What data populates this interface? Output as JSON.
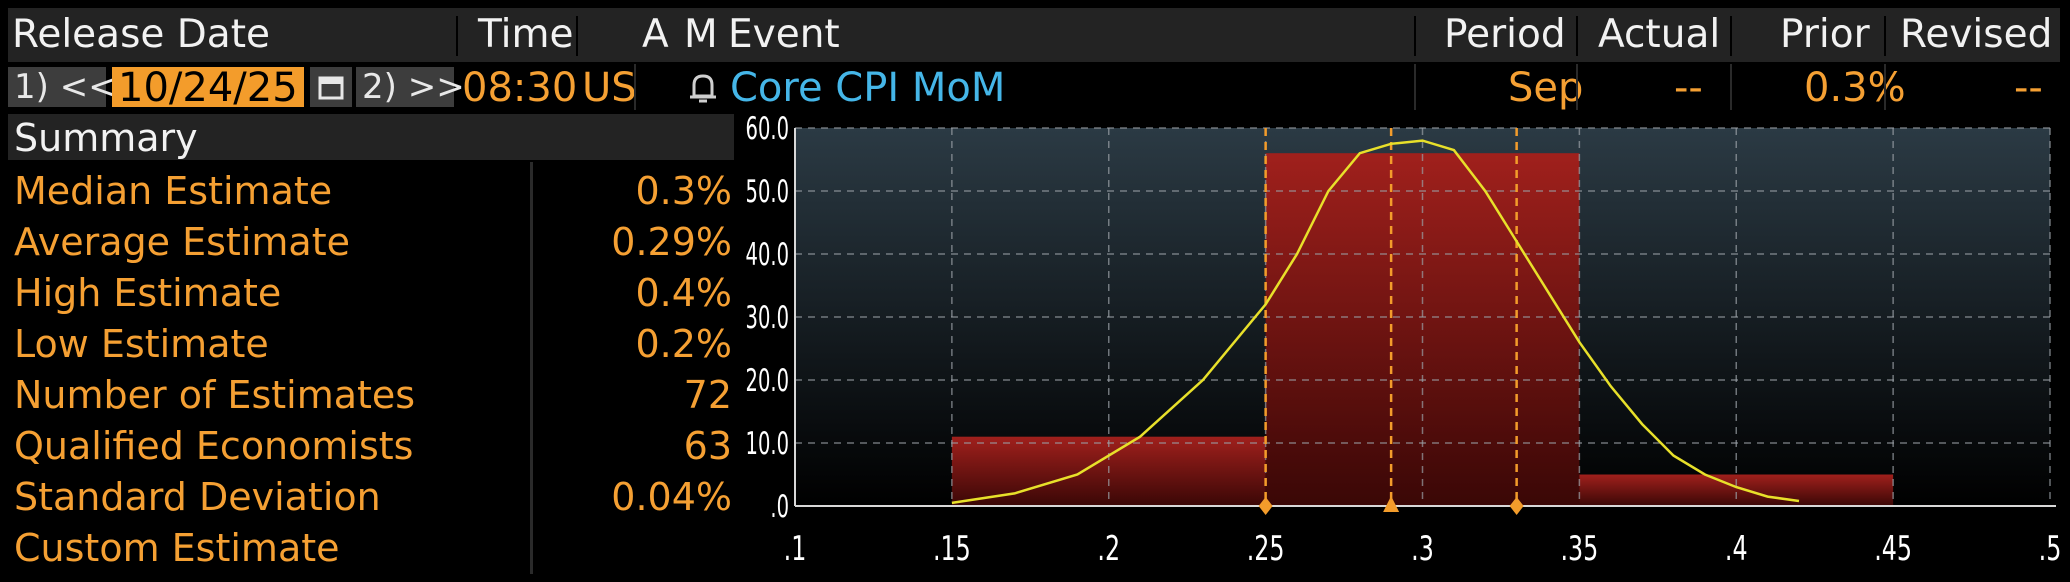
{
  "header": {
    "release_date": "Release Date",
    "time": "Time",
    "a": "A",
    "m": "M",
    "event": "Event",
    "period": "Period",
    "actual": "Actual",
    "prior": "Prior",
    "revised": "Revised"
  },
  "row": {
    "prev_btn": "1) <<",
    "date": "10/24/25",
    "calendar_icon": "calendar-icon",
    "next_btn": "2) >>",
    "time": "08:30",
    "region": "US",
    "alert_icon": "bell-icon",
    "event": "Core CPI MoM",
    "period": "Sep",
    "actual": "--",
    "prior": "0.3%",
    "revised": "--"
  },
  "summary": {
    "title": "Summary",
    "items": [
      {
        "label": "Median Estimate",
        "value": "0.3%"
      },
      {
        "label": "Average Estimate",
        "value": "0.29%"
      },
      {
        "label": "High Estimate",
        "value": "0.4%"
      },
      {
        "label": "Low Estimate",
        "value": "0.2%"
      },
      {
        "label": "Number of Estimates",
        "value": "72"
      },
      {
        "label": "Qualified Economists",
        "value": "63"
      },
      {
        "label": "Standard Deviation",
        "value": "0.04%"
      },
      {
        "label": "Custom Estimate",
        "value": ""
      }
    ]
  },
  "chart_data": {
    "type": "bar",
    "title": "",
    "xlabel": "",
    "ylabel": "",
    "xlim": [
      0.1,
      0.5
    ],
    "ylim": [
      0,
      60
    ],
    "x_ticks": [
      ".1",
      ".15",
      ".2",
      ".25",
      ".3",
      ".35",
      ".4",
      ".45",
      ".5"
    ],
    "x_tick_values": [
      0.1,
      0.15,
      0.2,
      0.25,
      0.3,
      0.35,
      0.4,
      0.45,
      0.5
    ],
    "y_ticks": [
      ".0",
      "10.0",
      "20.0",
      "30.0",
      "40.0",
      "50.0",
      "60.0"
    ],
    "y_tick_values": [
      0,
      10,
      20,
      30,
      40,
      50,
      60
    ],
    "bins": [
      {
        "from": 0.15,
        "to": 0.25,
        "value": 11
      },
      {
        "from": 0.25,
        "to": 0.35,
        "value": 56
      },
      {
        "from": 0.35,
        "to": 0.45,
        "value": 5
      }
    ],
    "curve": [
      [
        0.15,
        0.5
      ],
      [
        0.17,
        2
      ],
      [
        0.19,
        5
      ],
      [
        0.21,
        11
      ],
      [
        0.23,
        20
      ],
      [
        0.25,
        32
      ],
      [
        0.26,
        40
      ],
      [
        0.27,
        50
      ],
      [
        0.28,
        56
      ],
      [
        0.29,
        57.5
      ],
      [
        0.3,
        58
      ],
      [
        0.31,
        56.5
      ],
      [
        0.32,
        50
      ],
      [
        0.33,
        42
      ],
      [
        0.34,
        34
      ],
      [
        0.35,
        26
      ],
      [
        0.36,
        19
      ],
      [
        0.37,
        13
      ],
      [
        0.38,
        8
      ],
      [
        0.39,
        5
      ],
      [
        0.4,
        3
      ],
      [
        0.41,
        1.5
      ],
      [
        0.42,
        0.8
      ]
    ],
    "markers": [
      {
        "x": 0.25,
        "shape": "diamond"
      },
      {
        "x": 0.29,
        "shape": "triangle"
      },
      {
        "x": 0.33,
        "shape": "diamond"
      }
    ],
    "grid": true,
    "colors": {
      "bar": "#8a1a17",
      "curve": "#e8e02a",
      "marker": "#f39c2b",
      "grid": "#9aa0a6",
      "bg_top": "#2b3a44"
    }
  }
}
